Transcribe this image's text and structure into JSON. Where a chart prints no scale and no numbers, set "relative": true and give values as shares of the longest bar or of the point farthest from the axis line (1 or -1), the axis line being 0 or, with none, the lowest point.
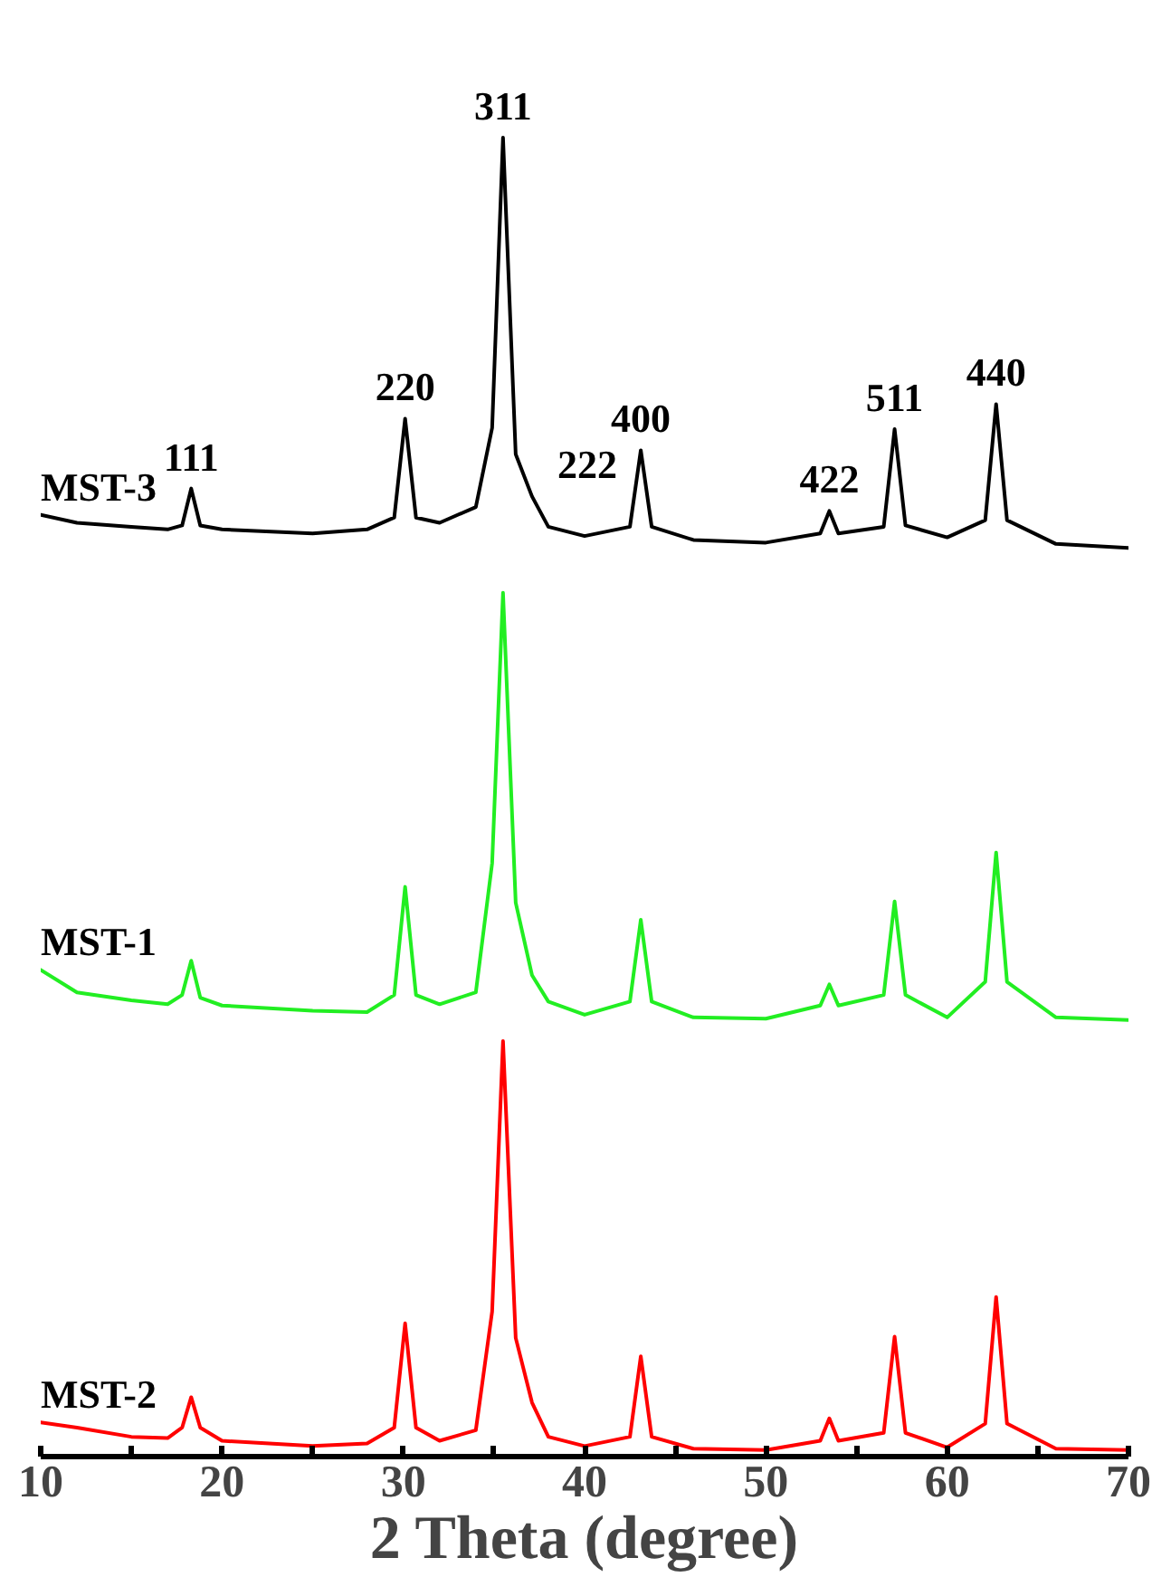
{
  "chart_data": {
    "type": "line",
    "relative": true,
    "xlabel": "2 Theta (degree)",
    "xlim": [
      10,
      70
    ],
    "xticks": [
      10,
      {
        "value": 15,
        "label": null
      },
      20,
      {
        "value": 25,
        "label": null
      },
      30,
      {
        "value": 35,
        "label": null
      },
      40,
      {
        "value": 45,
        "label": null
      },
      50,
      {
        "value": 55,
        "label": null
      },
      60,
      {
        "value": 65,
        "label": null
      },
      70
    ],
    "x": [
      10,
      12,
      15,
      17,
      17.8,
      18.3,
      18.8,
      20,
      25,
      28,
      29.5,
      30.1,
      30.7,
      32,
      34,
      34.9,
      35.5,
      36.2,
      37.1,
      38,
      40,
      42.5,
      43.1,
      43.7,
      46,
      50,
      53,
      53.5,
      54,
      56.5,
      57.1,
      57.7,
      60,
      62.1,
      62.7,
      63.3,
      66,
      70
    ],
    "series": [
      {
        "name": "MST-3",
        "color": "#000000",
        "values": [
          0.714,
          0.708,
          0.705,
          0.703,
          0.706,
          0.734,
          0.706,
          0.703,
          0.7,
          0.703,
          0.712,
          0.787,
          0.712,
          0.708,
          0.72,
          0.78,
          1.0,
          0.76,
          0.728,
          0.705,
          0.698,
          0.705,
          0.763,
          0.705,
          0.695,
          0.693,
          0.7,
          0.717,
          0.7,
          0.705,
          0.779,
          0.706,
          0.697,
          0.71,
          0.798,
          0.71,
          0.692,
          0.689
        ]
      },
      {
        "name": "MST-1",
        "color": "#22ee22",
        "values": [
          0.369,
          0.352,
          0.346,
          0.343,
          0.35,
          0.376,
          0.348,
          0.342,
          0.338,
          0.337,
          0.35,
          0.432,
          0.35,
          0.343,
          0.352,
          0.45,
          0.655,
          0.42,
          0.365,
          0.345,
          0.335,
          0.345,
          0.407,
          0.345,
          0.333,
          0.332,
          0.342,
          0.358,
          0.342,
          0.35,
          0.421,
          0.35,
          0.333,
          0.36,
          0.458,
          0.36,
          0.333,
          0.331
        ]
      },
      {
        "name": "MST-2",
        "color": "#ff0000",
        "values": [
          0.026,
          0.022,
          0.015,
          0.014,
          0.022,
          0.045,
          0.022,
          0.012,
          0.008,
          0.01,
          0.022,
          0.101,
          0.022,
          0.012,
          0.02,
          0.11,
          0.315,
          0.09,
          0.041,
          0.015,
          0.008,
          0.015,
          0.076,
          0.015,
          0.006,
          0.005,
          0.012,
          0.029,
          0.012,
          0.018,
          0.091,
          0.018,
          0.007,
          0.025,
          0.121,
          0.025,
          0.006,
          0.005
        ]
      }
    ],
    "annotations": [
      {
        "text": "111",
        "x": 18.3,
        "y": 0.734
      },
      {
        "text": "220",
        "x": 30.1,
        "y": 0.787
      },
      {
        "text": "311",
        "x": 35.5,
        "y": 1.0
      },
      {
        "text": "222",
        "x": 37.1,
        "y": 0.728
      },
      {
        "text": "400",
        "x": 43.1,
        "y": 0.763
      },
      {
        "text": "422",
        "x": 53.5,
        "y": 0.717
      },
      {
        "text": "511",
        "x": 57.1,
        "y": 0.779
      },
      {
        "text": "440",
        "x": 62.7,
        "y": 0.798
      }
    ],
    "grid": false,
    "legend": false,
    "marker": "none",
    "line_style": "solid"
  }
}
